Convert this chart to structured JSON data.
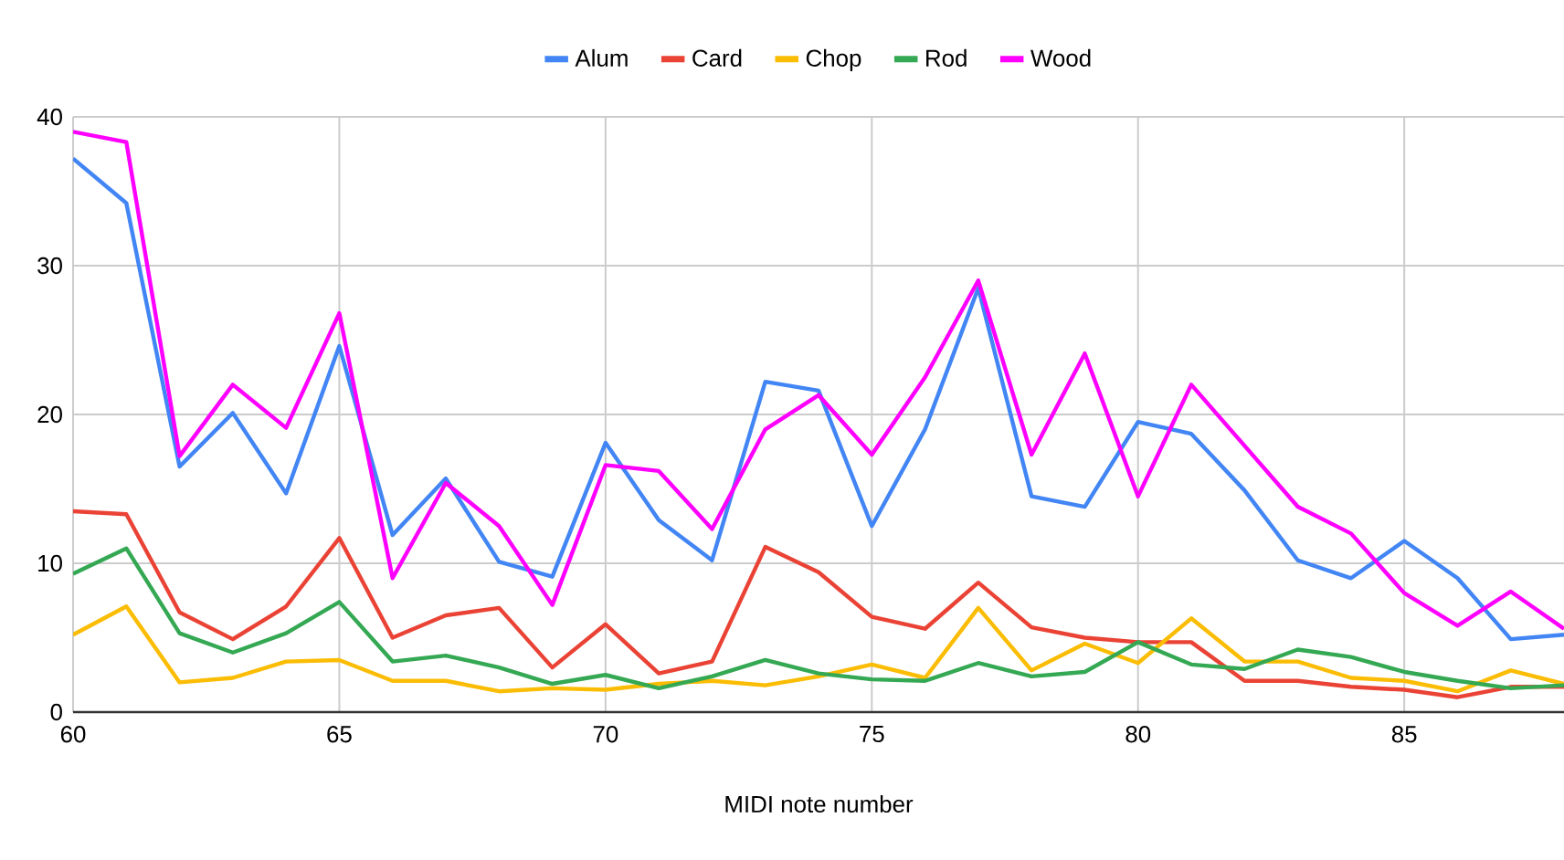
{
  "chart_data": {
    "type": "line",
    "xlabel": "MIDI note number",
    "x": [
      60,
      61,
      62,
      63,
      64,
      65,
      66,
      67,
      68,
      69,
      70,
      71,
      72,
      73,
      74,
      75,
      76,
      77,
      78,
      79,
      80,
      81,
      82,
      83,
      84,
      85,
      86,
      87,
      88
    ],
    "xlim": [
      60,
      88
    ],
    "xticks": [
      60,
      65,
      70,
      75,
      80,
      85
    ],
    "ylim": [
      0,
      40
    ],
    "yticks": [
      0,
      10,
      20,
      30,
      40
    ],
    "grid": true,
    "legend": "top",
    "marker": "none",
    "line_style": "solid",
    "series": [
      {
        "name": "Alum",
        "color": "#4285f4",
        "values": [
          37.2,
          34.2,
          16.5,
          20.1,
          14.7,
          24.6,
          11.9,
          15.7,
          10.1,
          9.1,
          18.1,
          12.9,
          10.2,
          22.2,
          21.6,
          12.5,
          19.0,
          28.5,
          14.5,
          13.8,
          19.5,
          18.7,
          14.9,
          10.2,
          9.0,
          11.5,
          9.0,
          4.9,
          5.2
        ]
      },
      {
        "name": "Card",
        "color": "#ea4335",
        "values": [
          13.5,
          13.3,
          6.7,
          4.9,
          7.1,
          11.7,
          5.0,
          6.5,
          7.0,
          3.0,
          5.9,
          2.6,
          3.4,
          11.1,
          9.4,
          6.4,
          5.6,
          8.7,
          5.7,
          5.0,
          4.7,
          4.7,
          2.1,
          2.1,
          1.7,
          1.5,
          1.0,
          1.7,
          1.7
        ]
      },
      {
        "name": "Chop",
        "color": "#fbbc04",
        "values": [
          5.2,
          7.1,
          2.0,
          2.3,
          3.4,
          3.5,
          2.1,
          2.1,
          1.4,
          1.6,
          1.5,
          1.9,
          2.1,
          1.8,
          2.4,
          3.2,
          2.3,
          7.0,
          2.8,
          4.6,
          3.3,
          6.3,
          3.4,
          3.4,
          2.3,
          2.1,
          1.4,
          2.8,
          1.9
        ]
      },
      {
        "name": "Rod",
        "color": "#34a853",
        "values": [
          9.3,
          11.0,
          5.3,
          4.0,
          5.3,
          7.4,
          3.4,
          3.8,
          3.0,
          1.9,
          2.5,
          1.6,
          2.4,
          3.5,
          2.6,
          2.2,
          2.1,
          3.3,
          2.4,
          2.7,
          4.7,
          3.2,
          2.9,
          4.2,
          3.7,
          2.7,
          2.1,
          1.6,
          1.8
        ]
      },
      {
        "name": "Wood",
        "color": "#ff00ff",
        "values": [
          39.0,
          38.3,
          17.2,
          22.0,
          19.1,
          26.8,
          9.0,
          15.4,
          12.5,
          7.2,
          16.6,
          16.2,
          12.3,
          19.0,
          21.3,
          17.3,
          22.5,
          29.0,
          17.3,
          24.1,
          14.5,
          22.0,
          17.9,
          13.8,
          12.0,
          8.0,
          5.8,
          8.1,
          5.6
        ]
      }
    ]
  }
}
